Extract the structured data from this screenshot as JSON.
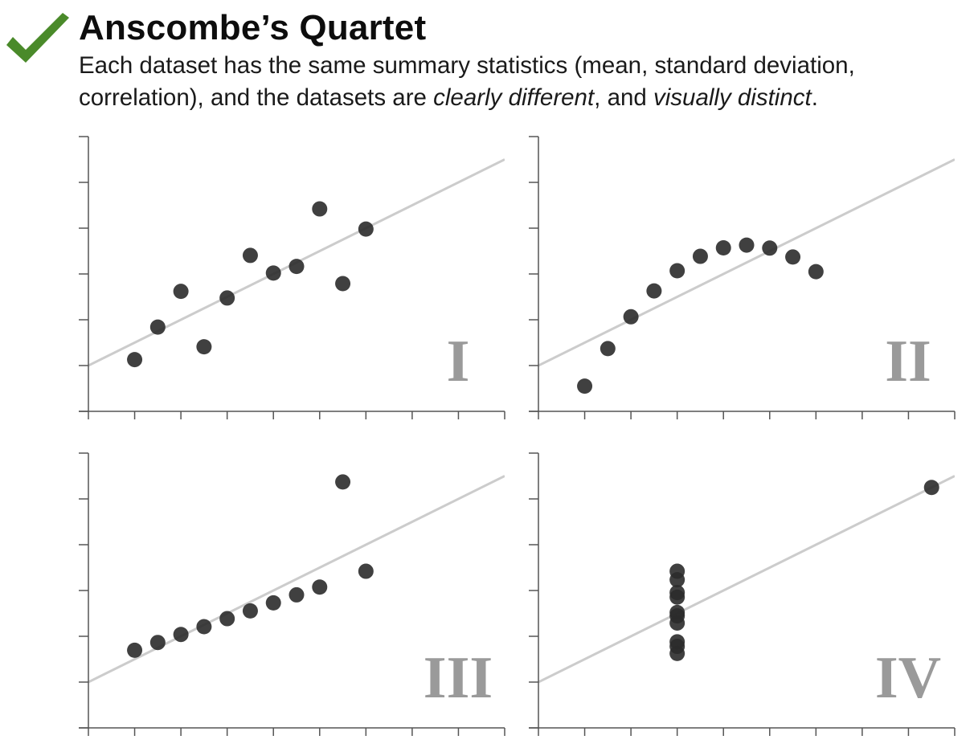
{
  "header": {
    "title": "Anscombe’s Quartet",
    "subtitle_part1": "Each dataset has the same summary statistics (mean, standard deviation,",
    "subtitle_part2": "correlation), and the datasets are ",
    "subtitle_em1": "clearly different",
    "subtitle_part3": ", and ",
    "subtitle_em2": "visually distinct",
    "subtitle_part4": "."
  },
  "colors": {
    "checkmark": "#4a8a2a",
    "points": "#2b2b2b",
    "fit_line": "#cccccc",
    "axis": "#555555",
    "panel_label": "#9a9a9a"
  },
  "icons": {
    "checkmark": "check-icon"
  },
  "chart_data": [
    {
      "type": "scatter",
      "panel_label": "I",
      "xlim": [
        2,
        20
      ],
      "ylim": [
        2,
        14
      ],
      "x_ticks": [
        2,
        4,
        6,
        8,
        10,
        12,
        14,
        16,
        18,
        20
      ],
      "y_ticks": [
        2,
        4,
        6,
        8,
        10,
        12,
        14
      ],
      "fit_line": {
        "slope": 0.5,
        "intercept": 3
      },
      "x": [
        10,
        8,
        13,
        9,
        11,
        14,
        6,
        4,
        12,
        7,
        5
      ],
      "y": [
        8.04,
        6.95,
        7.58,
        8.81,
        8.33,
        9.96,
        7.24,
        4.26,
        10.84,
        4.82,
        5.68
      ]
    },
    {
      "type": "scatter",
      "panel_label": "II",
      "xlim": [
        2,
        20
      ],
      "ylim": [
        2,
        14
      ],
      "x_ticks": [
        2,
        4,
        6,
        8,
        10,
        12,
        14,
        16,
        18,
        20
      ],
      "y_ticks": [
        2,
        4,
        6,
        8,
        10,
        12,
        14
      ],
      "fit_line": {
        "slope": 0.5,
        "intercept": 3
      },
      "x": [
        10,
        8,
        13,
        9,
        11,
        14,
        6,
        4,
        12,
        7,
        5
      ],
      "y": [
        9.14,
        8.14,
        8.74,
        8.77,
        9.26,
        8.1,
        6.13,
        3.1,
        9.13,
        7.26,
        4.74
      ]
    },
    {
      "type": "scatter",
      "panel_label": "III",
      "xlim": [
        2,
        20
      ],
      "ylim": [
        2,
        14
      ],
      "x_ticks": [
        2,
        4,
        6,
        8,
        10,
        12,
        14,
        16,
        18,
        20
      ],
      "y_ticks": [
        2,
        4,
        6,
        8,
        10,
        12,
        14
      ],
      "fit_line": {
        "slope": 0.5,
        "intercept": 3
      },
      "x": [
        10,
        8,
        13,
        9,
        11,
        14,
        6,
        4,
        12,
        7,
        5
      ],
      "y": [
        7.46,
        6.77,
        12.74,
        7.11,
        7.81,
        8.84,
        6.08,
        5.39,
        8.15,
        6.42,
        5.73
      ]
    },
    {
      "type": "scatter",
      "panel_label": "IV",
      "xlim": [
        2,
        20
      ],
      "ylim": [
        2,
        14
      ],
      "x_ticks": [
        2,
        4,
        6,
        8,
        10,
        12,
        14,
        16,
        18,
        20
      ],
      "y_ticks": [
        2,
        4,
        6,
        8,
        10,
        12,
        14
      ],
      "fit_line": {
        "slope": 0.5,
        "intercept": 3
      },
      "x": [
        8,
        8,
        8,
        8,
        8,
        8,
        8,
        19,
        8,
        8,
        8
      ],
      "y": [
        6.58,
        5.76,
        7.71,
        8.84,
        8.47,
        7.04,
        5.25,
        12.5,
        5.56,
        7.91,
        6.89
      ]
    }
  ]
}
